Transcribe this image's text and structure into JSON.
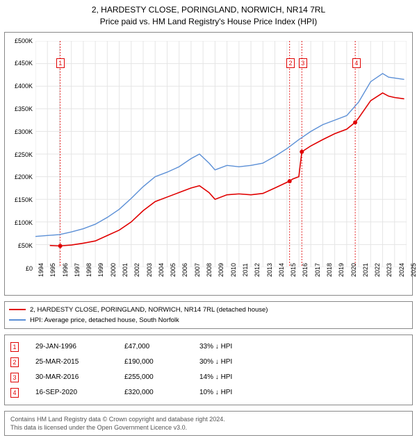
{
  "title": {
    "line1": "2, HARDESTY CLOSE, PORINGLAND, NORWICH, NR14 7RL",
    "line2": "Price paid vs. HM Land Registry's House Price Index (HPI)"
  },
  "chart": {
    "type": "line",
    "background_color": "#ffffff",
    "border_color": "#888888",
    "grid_color": "#e5e5e5",
    "label_fontsize": 9,
    "x": {
      "min": 1994,
      "max": 2025,
      "tick_step": 1
    },
    "y": {
      "min": 0,
      "max": 500000,
      "tick_step": 50000,
      "prefix": "£",
      "suffix": "K",
      "divide": 1000
    },
    "series": [
      {
        "name": "2, HARDESTY CLOSE, PORINGLAND, NORWICH, NR14 7RL (detached house)",
        "color": "#e00000",
        "width": 1.6,
        "points": [
          [
            1995.2,
            48000
          ],
          [
            1996.0,
            47000
          ],
          [
            1997.0,
            49000
          ],
          [
            1998.0,
            53000
          ],
          [
            1999.0,
            58000
          ],
          [
            2000.0,
            70000
          ],
          [
            2001.0,
            82000
          ],
          [
            2002.0,
            100000
          ],
          [
            2003.0,
            125000
          ],
          [
            2004.0,
            145000
          ],
          [
            2005.0,
            155000
          ],
          [
            2006.0,
            165000
          ],
          [
            2007.0,
            175000
          ],
          [
            2007.7,
            180000
          ],
          [
            2008.5,
            165000
          ],
          [
            2009.0,
            150000
          ],
          [
            2010.0,
            160000
          ],
          [
            2011.0,
            162000
          ],
          [
            2012.0,
            160000
          ],
          [
            2013.0,
            163000
          ],
          [
            2014.0,
            175000
          ],
          [
            2015.2,
            190000
          ],
          [
            2015.5,
            195000
          ],
          [
            2016.0,
            200000
          ],
          [
            2016.25,
            255000
          ],
          [
            2017.0,
            268000
          ],
          [
            2018.0,
            282000
          ],
          [
            2019.0,
            295000
          ],
          [
            2020.0,
            305000
          ],
          [
            2020.7,
            320000
          ],
          [
            2021.0,
            330000
          ],
          [
            2022.0,
            368000
          ],
          [
            2023.0,
            385000
          ],
          [
            2023.5,
            378000
          ],
          [
            2024.0,
            375000
          ],
          [
            2024.8,
            372000
          ]
        ]
      },
      {
        "name": "HPI: Average price, detached house, South Norfolk",
        "color": "#5b8fd6",
        "width": 1.4,
        "points": [
          [
            1994.0,
            68000
          ],
          [
            1995.0,
            70000
          ],
          [
            1996.0,
            72000
          ],
          [
            1997.0,
            78000
          ],
          [
            1998.0,
            85000
          ],
          [
            1999.0,
            95000
          ],
          [
            2000.0,
            110000
          ],
          [
            2001.0,
            128000
          ],
          [
            2002.0,
            152000
          ],
          [
            2003.0,
            178000
          ],
          [
            2004.0,
            200000
          ],
          [
            2005.0,
            210000
          ],
          [
            2006.0,
            222000
          ],
          [
            2007.0,
            240000
          ],
          [
            2007.7,
            250000
          ],
          [
            2008.5,
            230000
          ],
          [
            2009.0,
            215000
          ],
          [
            2010.0,
            225000
          ],
          [
            2011.0,
            222000
          ],
          [
            2012.0,
            225000
          ],
          [
            2013.0,
            230000
          ],
          [
            2014.0,
            245000
          ],
          [
            2015.0,
            262000
          ],
          [
            2016.0,
            282000
          ],
          [
            2017.0,
            300000
          ],
          [
            2018.0,
            315000
          ],
          [
            2019.0,
            325000
          ],
          [
            2020.0,
            335000
          ],
          [
            2021.0,
            365000
          ],
          [
            2022.0,
            410000
          ],
          [
            2023.0,
            428000
          ],
          [
            2023.5,
            420000
          ],
          [
            2024.0,
            418000
          ],
          [
            2024.8,
            415000
          ]
        ]
      }
    ],
    "event_markers": [
      {
        "label": "1",
        "x": 1996.07,
        "price": 47000
      },
      {
        "label": "2",
        "x": 2015.23,
        "price": 190000
      },
      {
        "label": "3",
        "x": 2016.25,
        "price": 255000
      },
      {
        "label": "4",
        "x": 2020.71,
        "price": 320000
      }
    ],
    "event_line_color": "#e00000",
    "marker_y_top": 450000
  },
  "legend": [
    {
      "color": "#e00000",
      "label": "2, HARDESTY CLOSE, PORINGLAND, NORWICH, NR14 7RL (detached house)"
    },
    {
      "color": "#5b8fd6",
      "label": "HPI: Average price, detached house, South Norfolk"
    }
  ],
  "events": [
    {
      "n": "1",
      "date": "29-JAN-1996",
      "price": "£47,000",
      "delta": "33% ↓ HPI"
    },
    {
      "n": "2",
      "date": "25-MAR-2015",
      "price": "£190,000",
      "delta": "30% ↓ HPI"
    },
    {
      "n": "3",
      "date": "30-MAR-2016",
      "price": "£255,000",
      "delta": "14% ↓ HPI"
    },
    {
      "n": "4",
      "date": "16-SEP-2020",
      "price": "£320,000",
      "delta": "10% ↓ HPI"
    }
  ],
  "footer": {
    "line1": "Contains HM Land Registry data © Crown copyright and database right 2024.",
    "line2": "This data is licensed under the Open Government Licence v3.0."
  }
}
